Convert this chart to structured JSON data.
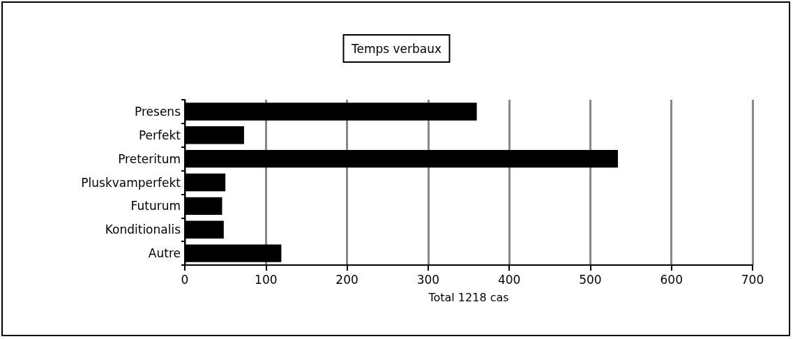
{
  "chart_data": {
    "type": "bar",
    "orientation": "horizontal",
    "title": "Temps verbaux",
    "xlabel": "Total 1218 cas",
    "categories": [
      "Presens",
      "Perfekt",
      "Preteritum",
      "Pluskvamperfekt",
      "Futurum",
      "Konditionalis",
      "Autre"
    ],
    "values": [
      360,
      73,
      534,
      50,
      46,
      48,
      119
    ],
    "color": "#000000",
    "xlim": [
      0,
      700
    ],
    "xticks": [
      0,
      100,
      200,
      300,
      400,
      500,
      600,
      700
    ],
    "grid": "x"
  }
}
